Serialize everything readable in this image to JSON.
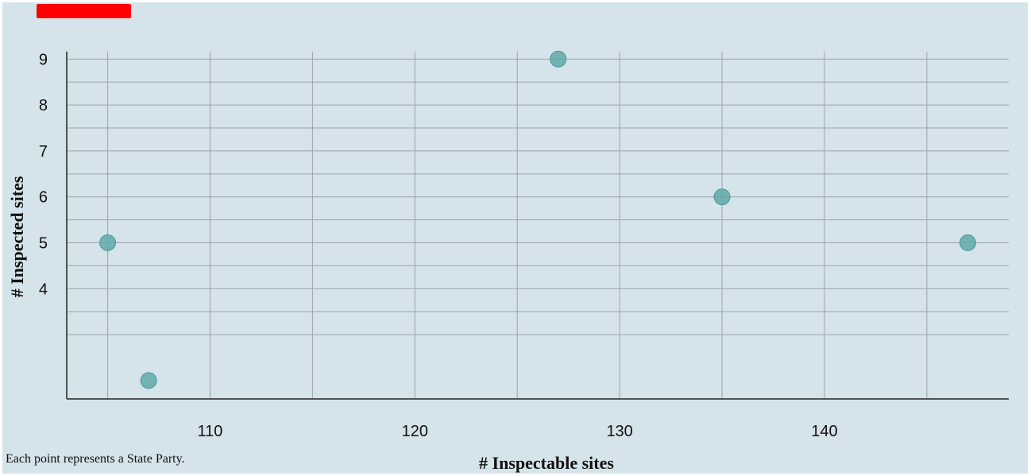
{
  "chart_data": {
    "type": "scatter",
    "title": "",
    "xlabel": "# Inspectable sites",
    "ylabel": "# Inspected sites",
    "xlim": [
      103,
      149
    ],
    "ylim": [
      1.6,
      9.3
    ],
    "x_ticks": [
      110,
      120,
      130,
      140
    ],
    "y_ticks": [
      4,
      5,
      6,
      7,
      8,
      9
    ],
    "grid": true,
    "marker_color": "#5fa9a8",
    "points": [
      {
        "x": 105,
        "y": 5
      },
      {
        "x": 107,
        "y": 2
      },
      {
        "x": 127,
        "y": 9
      },
      {
        "x": 135,
        "y": 6
      },
      {
        "x": 147,
        "y": 5
      }
    ]
  },
  "note": "Each point represents a State Party."
}
